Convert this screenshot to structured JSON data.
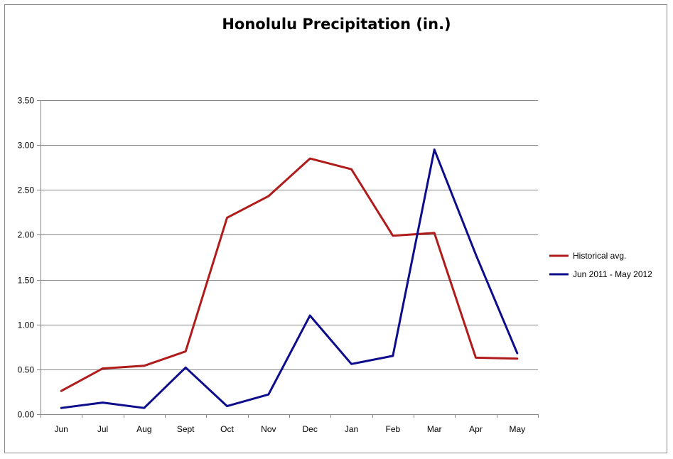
{
  "chart_data": {
    "type": "line",
    "title": "Honolulu Precipitation (in.)",
    "categories": [
      "Jun",
      "Jul",
      "Aug",
      "Sept",
      "Oct",
      "Nov",
      "Dec",
      "Jan",
      "Feb",
      "Mar",
      "Apr",
      "May"
    ],
    "ylim": [
      0,
      3.5
    ],
    "yticks": [
      "0.00",
      "0.50",
      "1.00",
      "1.50",
      "2.00",
      "2.50",
      "3.00",
      "3.50"
    ],
    "grid": true,
    "legend_position": "right",
    "series": [
      {
        "name": "Historical avg.",
        "color": "#b01c1c",
        "values": [
          0.26,
          0.51,
          0.54,
          0.7,
          2.19,
          2.43,
          2.85,
          2.73,
          1.99,
          2.02,
          0.63,
          0.62
        ]
      },
      {
        "name": "Jun 2011 - May 2012",
        "color": "#0d0d8c",
        "values": [
          0.07,
          0.13,
          0.07,
          0.52,
          0.09,
          0.22,
          1.1,
          0.56,
          0.65,
          2.95,
          1.78,
          0.68
        ]
      }
    ]
  }
}
